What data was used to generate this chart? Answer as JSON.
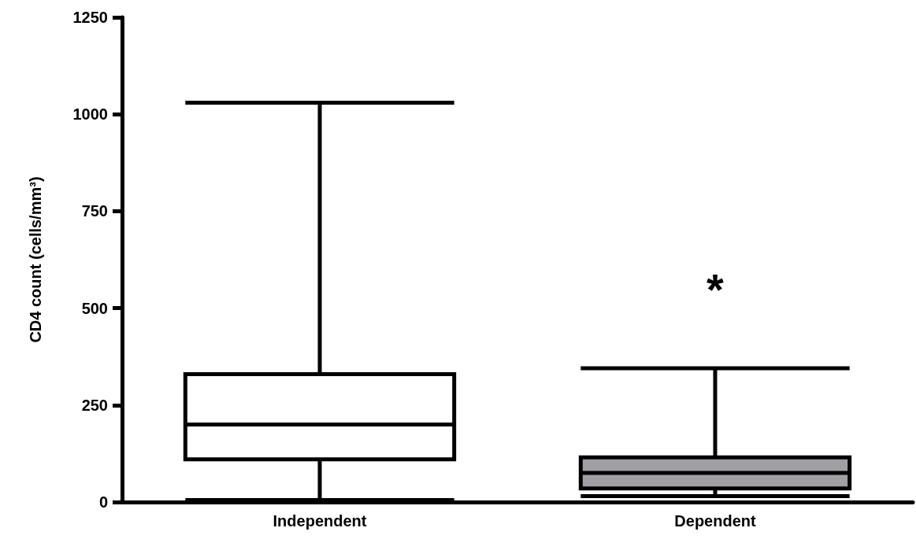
{
  "chart_data": {
    "type": "box",
    "ylabel": "CD4 count (cells/mm³)",
    "categories": [
      "Independent",
      "Dependent"
    ],
    "boxes": [
      {
        "low": 5,
        "q1": 110,
        "median": 200,
        "q3": 330,
        "high": 1030
      },
      {
        "low": 15,
        "q1": 35,
        "median": 75,
        "q3": 115,
        "high": 345
      }
    ],
    "colors": [
      "#ffffff",
      "#a0a0a4"
    ],
    "ylim": [
      0,
      1250
    ],
    "yticks": [
      0,
      250,
      500,
      750,
      1000,
      1250
    ],
    "grid": false,
    "annotations": [
      "*"
    ]
  }
}
